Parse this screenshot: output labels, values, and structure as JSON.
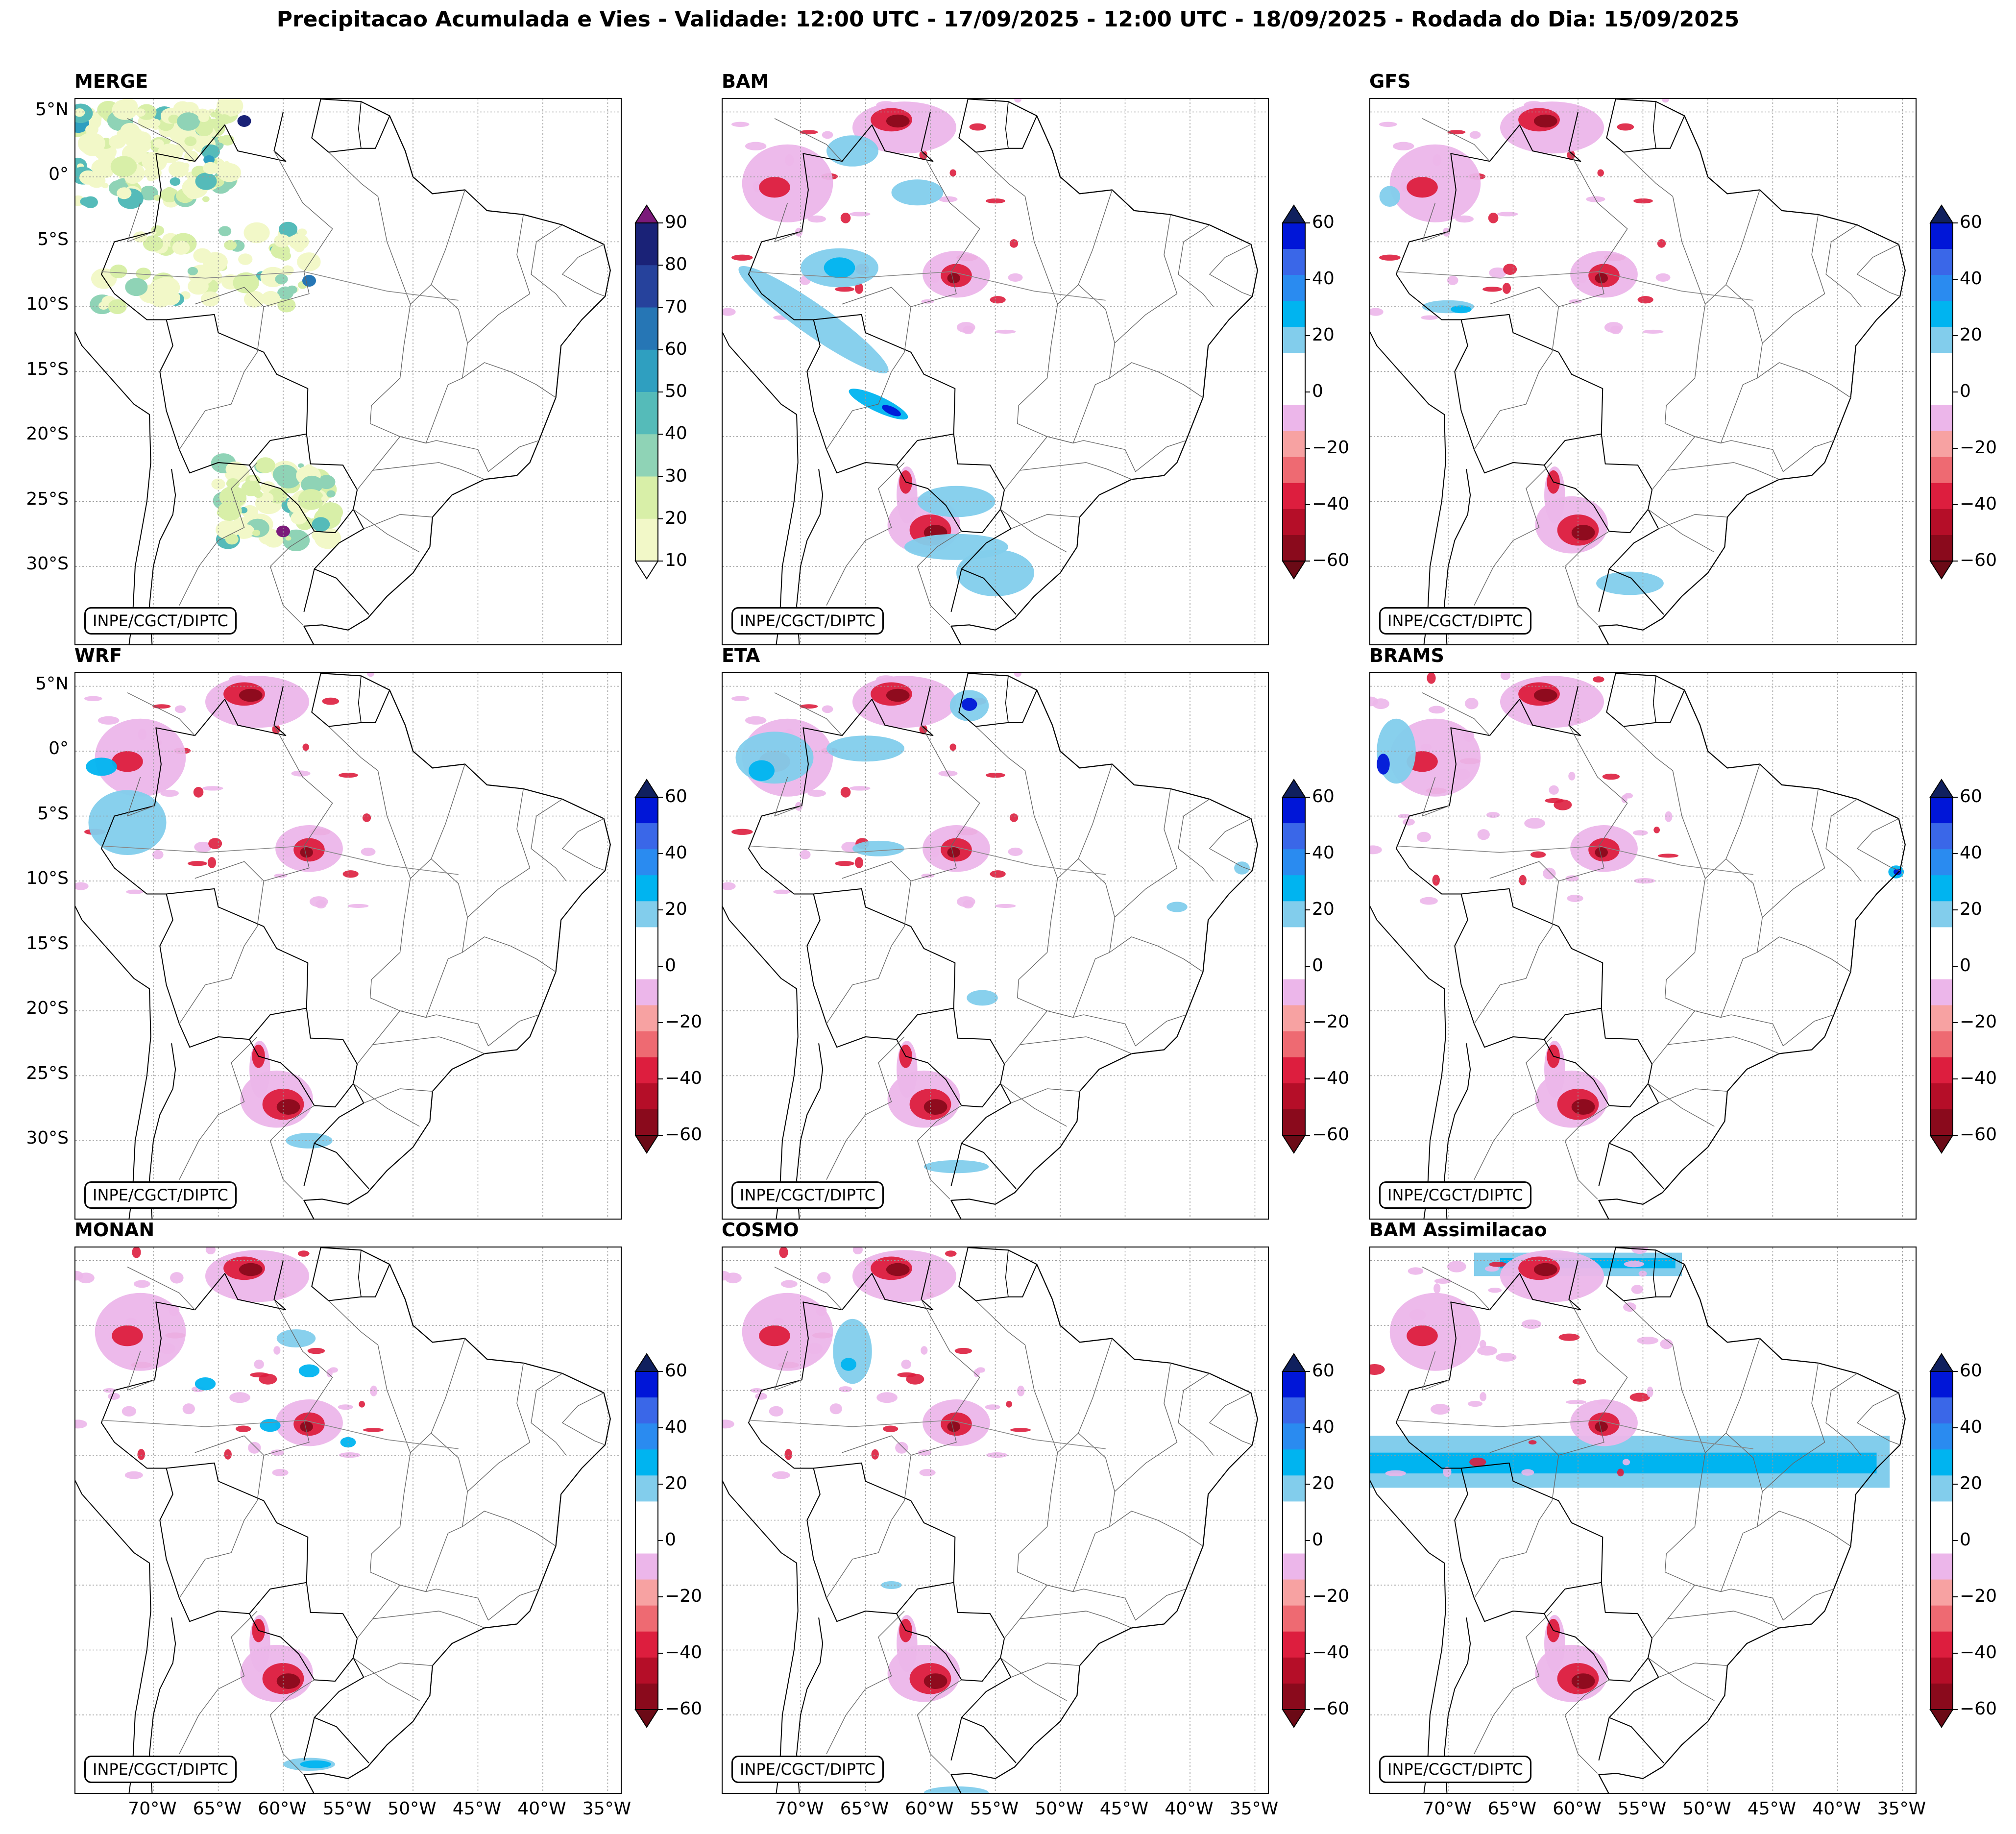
{
  "title": "Precipitacao Acumulada e Vies - Validade: 12:00 UTC - 17/09/2025 - 12:00 UTC - 18/09/2025 - Rodada do Dia: 15/09/2025",
  "credit": "INPE/CGCT/DIPTC",
  "lat_ticks": [
    "5°N",
    "0°",
    "5°S",
    "10°S",
    "15°S",
    "20°S",
    "25°S",
    "30°S"
  ],
  "lon_ticks": [
    "70°W",
    "65°W",
    "60°W",
    "55°W",
    "50°W",
    "45°W",
    "40°W",
    "35°W"
  ],
  "map_extent": {
    "lon_min": -76,
    "lon_max": -34,
    "lat_min": -36,
    "lat_max": 6
  },
  "colorbars": {
    "precip": {
      "ticks": [
        "10",
        "20",
        "30",
        "40",
        "50",
        "60",
        "70",
        "80",
        "90"
      ],
      "colors": [
        "#f2f8c8",
        "#d8efa8",
        "#8fd3b6",
        "#55bbb9",
        "#2f9fc0",
        "#2676b5",
        "#26429c",
        "#1a2277"
      ],
      "over_color": "#7b1a7a",
      "under_color": "#ffffff"
    },
    "bias": {
      "ticks": [
        "60",
        "40",
        "20",
        "0",
        "−20",
        "−40",
        "−60"
      ],
      "colors": [
        "#0016d8",
        "#3a67e8",
        "#2a8bf0",
        "#00b4f0",
        "#82cdec",
        "#ffffff",
        "#ffffff",
        "#ecb6ea",
        "#f7a2a2",
        "#ee6a72",
        "#dd1e3e",
        "#b50e28",
        "#8a0a1c"
      ],
      "over_color": "#10205e",
      "under_color": "#6b0a16"
    }
  },
  "panels": [
    {
      "name": "MERGE",
      "type": "precip",
      "show_lat": true,
      "show_lon": false
    },
    {
      "name": "BAM",
      "type": "bias",
      "show_lat": false,
      "show_lon": false
    },
    {
      "name": "GFS",
      "type": "bias",
      "show_lat": false,
      "show_lon": false
    },
    {
      "name": "WRF",
      "type": "bias",
      "show_lat": true,
      "show_lon": false
    },
    {
      "name": "ETA",
      "type": "bias",
      "show_lat": false,
      "show_lon": false
    },
    {
      "name": "BRAMS",
      "type": "bias",
      "show_lat": false,
      "show_lon": false
    },
    {
      "name": "MONAN",
      "type": "bias",
      "show_lat": false,
      "show_lon": true
    },
    {
      "name": "COSMO",
      "type": "bias",
      "show_lat": false,
      "show_lon": true
    },
    {
      "name": "BAM Assimilacao",
      "type": "bias",
      "show_lat": false,
      "show_lon": true
    }
  ],
  "blob_colors": {
    "red_dark": "#8a0a1c",
    "red": "#dd1e3e",
    "pink": "#ecb6ea",
    "blue_light": "#82cdec",
    "blue": "#00b4f0",
    "blue_dark": "#0016d8"
  }
}
